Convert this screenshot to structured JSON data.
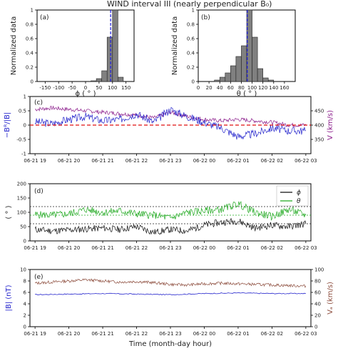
{
  "figure_title": "WIND interval III (nearly perpendicular B₀)",
  "bottom_xlabel": "Time (month-day hour)",
  "time_ticks": [
    "06-21 19",
    "06-21 20",
    "06-21 21",
    "06-21 22",
    "06-21 23",
    "06-22 00",
    "06-22 01",
    "06-22 02",
    "06-22 03"
  ],
  "chart_data": [
    {
      "type": "bar",
      "panel_label": "(a)",
      "xlabel": "ϕ ( ° )",
      "ylabel": "Normalized data",
      "xlim": [
        -180,
        180
      ],
      "ylim": [
        0,
        1.0
      ],
      "xticks": [
        -150,
        -100,
        -50,
        0,
        50,
        100,
        150
      ],
      "yticks": [
        0.0,
        0.2,
        0.4,
        0.6,
        0.8,
        1.0
      ],
      "bin_width": 20,
      "bin_starts": [
        20,
        40,
        60,
        80,
        100,
        120
      ],
      "values": [
        0.01,
        0.04,
        0.15,
        0.62,
        1.0,
        0.06
      ],
      "mean_line": 93,
      "bar_color": "#808080",
      "mean_color": "#1a1adc"
    },
    {
      "type": "bar",
      "panel_label": "(b)",
      "xlabel": "θ ( ° )",
      "ylabel": "Normalized data",
      "xlim": [
        0,
        180
      ],
      "ylim": [
        0,
        1.0
      ],
      "xticks": [
        0,
        20,
        40,
        60,
        80,
        100,
        120,
        140,
        160
      ],
      "yticks": [
        0.0,
        0.2,
        0.4,
        0.6,
        0.8,
        1.0
      ],
      "bin_width": 10,
      "bin_starts": [
        30,
        40,
        50,
        60,
        70,
        80,
        90,
        100,
        110,
        120,
        130
      ],
      "values": [
        0.02,
        0.06,
        0.12,
        0.22,
        0.35,
        0.5,
        1.0,
        0.62,
        0.18,
        0.05,
        0.02
      ],
      "mean_line": 91,
      "bar_color": "#808080",
      "mean_color": "#1a1adc"
    },
    {
      "type": "line",
      "panel_label": "(c)",
      "ylabel_left": "−Bᴿ/|B|",
      "ylabel_right": "V (km/s)",
      "ylim_left": [
        -1.0,
        1.0
      ],
      "yticks_left": [
        -1.0,
        -0.5,
        0.0,
        0.5,
        1.0
      ],
      "ylim_right": [
        300,
        500
      ],
      "yticks_right": [
        350,
        400,
        450
      ],
      "reference_line": 0.0,
      "reference_color": "#e01010",
      "series": [
        {
          "axis": "left",
          "color": "#2222cc",
          "x": [
            19.0,
            19.5,
            20.0,
            20.5,
            21.0,
            21.5,
            22.0,
            22.5,
            23.0,
            23.5,
            24.0,
            24.5,
            25.0,
            25.5,
            26.0,
            26.5,
            27.0
          ],
          "values": [
            0.12,
            0.05,
            0.2,
            0.3,
            0.15,
            0.2,
            0.4,
            0.1,
            0.55,
            0.3,
            0.1,
            -0.1,
            -0.4,
            -0.3,
            -0.1,
            -0.2,
            -0.2
          ]
        },
        {
          "axis": "right",
          "color": "#8a1a8a",
          "x": [
            19.0,
            19.5,
            20.0,
            20.5,
            21.0,
            21.5,
            22.0,
            22.5,
            23.0,
            23.5,
            24.0,
            24.5,
            25.0,
            25.5,
            26.0,
            26.5,
            27.0
          ],
          "values": [
            455,
            460,
            455,
            450,
            445,
            440,
            435,
            425,
            445,
            430,
            420,
            415,
            420,
            415,
            410,
            400,
            400
          ]
        }
      ]
    },
    {
      "type": "line",
      "panel_label": "(d)",
      "ylabel_left": "( ° )",
      "ylim_left": [
        0,
        200
      ],
      "yticks_left": [
        0,
        50,
        100,
        150,
        200
      ],
      "reference_lines": [
        {
          "value": 60,
          "color": "#222222",
          "dash": "2,2"
        },
        {
          "value": 90,
          "color": "#22aa22",
          "dash": "2,2"
        },
        {
          "value": 120,
          "color": "#222222",
          "dash": "2,2"
        }
      ],
      "legend_position": "top-right",
      "series": [
        {
          "name": "ϕ",
          "color": "#111111",
          "x": [
            19.0,
            19.5,
            20.0,
            20.5,
            21.0,
            21.5,
            22.0,
            22.5,
            23.0,
            23.5,
            24.0,
            24.5,
            25.0,
            25.5,
            26.0,
            26.5,
            27.0
          ],
          "values": [
            40,
            35,
            38,
            42,
            45,
            40,
            50,
            30,
            40,
            35,
            55,
            65,
            70,
            45,
            55,
            50,
            60
          ]
        },
        {
          "name": "θ",
          "color": "#22aa22",
          "x": [
            19.0,
            19.5,
            20.0,
            20.5,
            21.0,
            21.5,
            22.0,
            22.5,
            23.0,
            23.5,
            24.0,
            24.5,
            25.0,
            25.5,
            26.0,
            26.5,
            27.0
          ],
          "values": [
            92,
            90,
            95,
            110,
            100,
            105,
            95,
            90,
            80,
            100,
            105,
            110,
            130,
            100,
            85,
            110,
            90
          ]
        }
      ]
    },
    {
      "type": "line",
      "panel_label": "(e)",
      "ylabel_left": "|B| (nT)",
      "ylabel_right": "Vₐ (km/s)",
      "ylim_left": [
        0,
        10
      ],
      "yticks_left": [
        0,
        2,
        4,
        6,
        8,
        10
      ],
      "ylim_right": [
        0,
        100
      ],
      "yticks_right": [
        0,
        20,
        40,
        60,
        80,
        100
      ],
      "series": [
        {
          "axis": "left",
          "color": "#2222cc",
          "x": [
            19.0,
            20.0,
            21.0,
            22.0,
            23.0,
            24.0,
            25.0,
            26.0,
            27.0
          ],
          "values": [
            5.6,
            5.7,
            5.8,
            5.7,
            5.6,
            5.8,
            5.9,
            5.8,
            5.8
          ]
        },
        {
          "axis": "right",
          "color": "#8b4a3a",
          "x": [
            19.0,
            19.5,
            20.0,
            20.5,
            21.0,
            21.5,
            22.0,
            22.5,
            23.0,
            23.5,
            24.0,
            24.5,
            25.0,
            25.5,
            26.0,
            26.5,
            27.0
          ],
          "values": [
            76,
            78,
            80,
            82,
            80,
            78,
            79,
            77,
            74,
            73,
            75,
            76,
            75,
            74,
            73,
            72,
            71
          ]
        }
      ]
    }
  ]
}
